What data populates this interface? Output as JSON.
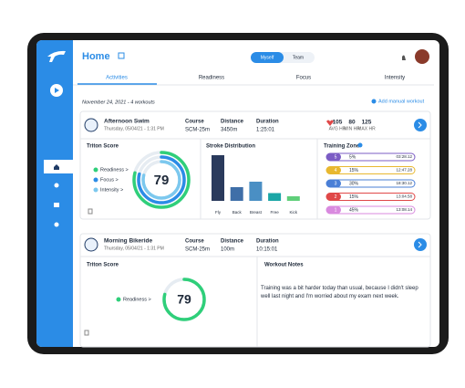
{
  "header": {
    "title": "Home",
    "toggle": [
      "Myself",
      "Team"
    ]
  },
  "tabs": [
    "Activities",
    "Readiness",
    "Focus",
    "Intensity"
  ],
  "date_line": "November 24, 2021 - 4 workouts",
  "add_workout": "Add manual workout",
  "workouts": [
    {
      "title": "Afternoon Swim",
      "subtitle": "Thursday, 05/04/21 - 1:31 PM",
      "stats": [
        {
          "label": "Course",
          "value": "SCM-25m"
        },
        {
          "label": "Distance",
          "value": "3450m"
        },
        {
          "label": "Duration",
          "value": "1:25:01"
        }
      ],
      "heart": [
        {
          "value": "105",
          "label": "AVG HR"
        },
        {
          "value": "80",
          "label": "MIN HR"
        },
        {
          "value": "125",
          "label": "MAX HR"
        }
      ],
      "score": {
        "title": "Triton Score",
        "value": "79",
        "legend": [
          "Readiness >",
          "Focus >",
          "Intensity >"
        ]
      },
      "stroke_distribution": {
        "title": "Stroke Distribution",
        "categories": [
          "Fly",
          "Back",
          "Breast",
          "Free",
          "Kick"
        ],
        "values": [
          100,
          30,
          42,
          17,
          10
        ]
      },
      "training_zone": {
        "title": "Training Zone",
        "rows": [
          {
            "zone": "5",
            "percent": "5%",
            "time": "03:28.12"
          },
          {
            "zone": "4",
            "percent": "15%",
            "time": "12:47.28"
          },
          {
            "zone": "3",
            "percent": "30%",
            "time": "18:30.12"
          },
          {
            "zone": "2",
            "percent": "15%",
            "time": "13:04.58"
          },
          {
            "zone": "1",
            "percent": "45%",
            "time": "13:08.14"
          }
        ]
      }
    },
    {
      "title": "Morning Bikeride",
      "subtitle": "Thursday, 05/04/21 - 1:31 PM",
      "stats": [
        {
          "label": "Course",
          "value": "SCM-25m"
        },
        {
          "label": "Distance",
          "value": "100m"
        },
        {
          "label": "Duration",
          "value": "10:15:01"
        }
      ],
      "score": {
        "title": "Triton Score",
        "value": "79",
        "legend": [
          "Readiness >"
        ]
      },
      "notes": {
        "title": "Workout Notes",
        "text": "Training was a bit harder today than usual, because I didn't sleep well last night and I'm worried about my exam next week."
      }
    }
  ]
}
